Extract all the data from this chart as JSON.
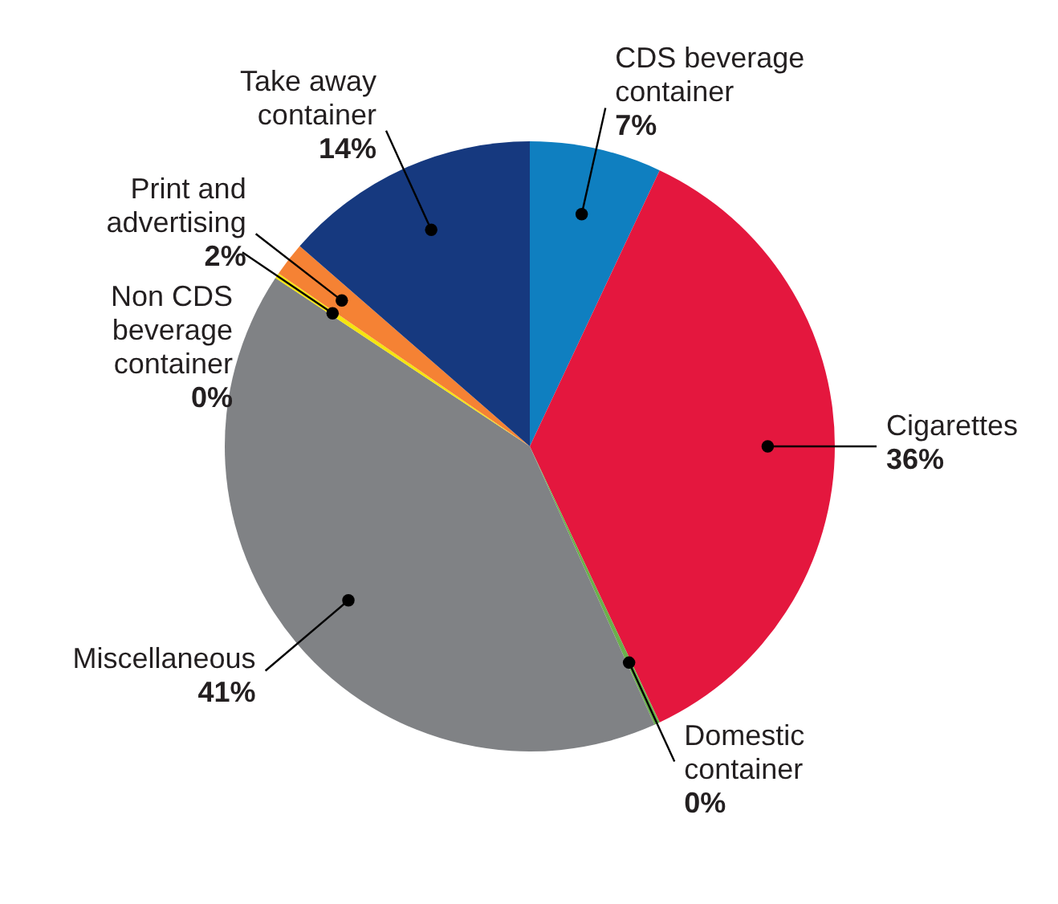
{
  "chart_data": {
    "type": "pie",
    "categories": [
      "CDS beverage container",
      "Cigarettes",
      "Domestic container",
      "Miscellaneous",
      "Non CDS beverage container",
      "Print and advertising",
      "Take away container"
    ],
    "values": [
      7,
      36,
      0.3,
      41,
      0.3,
      1.8,
      13.6
    ],
    "value_labels": [
      "7%",
      "36%",
      "0%",
      "41%",
      "0%",
      "2%",
      "14%"
    ],
    "colors": [
      "#0f7fc0",
      "#e4173e",
      "#6ab04c",
      "#808285",
      "#f5e50f",
      "#f58234",
      "#16397f"
    ]
  }
}
